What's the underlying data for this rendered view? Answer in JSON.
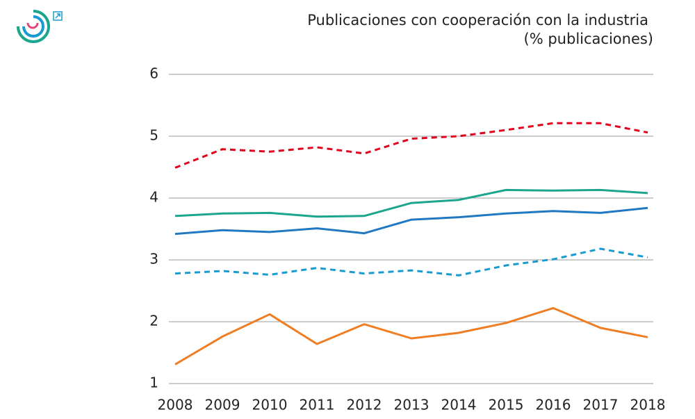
{
  "chart_data": {
    "type": "line",
    "title": "Publicaciones con cooperación con la industria",
    "subtitle": "(% publicaciones)",
    "categories": [
      "2008",
      "2009",
      "2010",
      "2011",
      "2012",
      "2013",
      "2014",
      "2015",
      "2016",
      "2017",
      "2018"
    ],
    "ylim": [
      1,
      6
    ],
    "yticks": [
      1,
      2,
      3,
      4,
      5,
      6
    ],
    "grid": true,
    "series": [
      {
        "color": "#e3001b",
        "dash": true,
        "values": [
          4.49,
          4.79,
          4.75,
          4.82,
          4.72,
          4.96,
          5.0,
          5.1,
          5.21,
          5.21,
          5.06
        ]
      },
      {
        "color": "#1aa58c",
        "dash": false,
        "values": [
          3.71,
          3.75,
          3.76,
          3.7,
          3.71,
          3.92,
          3.97,
          4.13,
          4.12,
          4.13,
          4.08
        ]
      },
      {
        "color": "#1f78c1",
        "dash": false,
        "values": [
          3.42,
          3.48,
          3.45,
          3.51,
          3.43,
          3.65,
          3.69,
          3.75,
          3.79,
          3.76,
          3.84
        ]
      },
      {
        "color": "#1a9bd0",
        "dash": true,
        "values": [
          2.78,
          2.82,
          2.76,
          2.87,
          2.78,
          2.83,
          2.75,
          2.91,
          3.01,
          3.18,
          3.04
        ]
      },
      {
        "color": "#ee7d23",
        "dash": false,
        "values": [
          1.31,
          1.76,
          2.12,
          1.64,
          1.96,
          1.73,
          1.82,
          1.98,
          2.22,
          1.9,
          1.75
        ]
      }
    ]
  }
}
